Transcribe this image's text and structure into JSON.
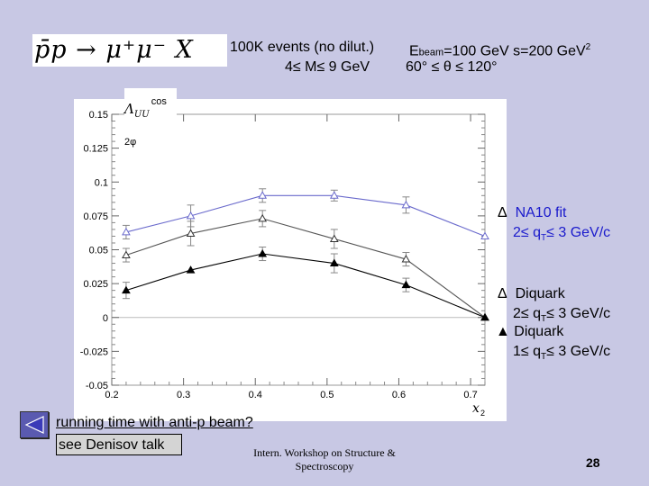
{
  "header": {
    "reaction": "p̄p → μ⁺μ⁻ X",
    "events": "100K events (no dilut.)",
    "mass_range": "4≤ M≤ 9 GeV",
    "beam_prefix": "E",
    "beam_sub": "beam",
    "beam_value": "=100 GeV  s=200 GeV",
    "beam_sup": "2",
    "theta_range": "60° ≤ θ ≤ 120°"
  },
  "y_axis_label": {
    "symbol": "Λ",
    "sub": "UU",
    "sup": "cos 2φ"
  },
  "legend": {
    "na10_marker": "Δ",
    "na10_label": "NA10 fit",
    "na10_range": "2≤ q",
    "na10_range_sub": "T",
    "na10_range_end": "≤ 3 GeV/c",
    "diquark_open_marker": "Δ",
    "diquark_open_label": "Diquark",
    "diquark_open_range": "2≤ q",
    "diquark_open_range_sub": "T",
    "diquark_open_range_end": "≤ 3 GeV/c",
    "diquark_filled_marker": "▲",
    "diquark_filled_label": "Diquark",
    "diquark_filled_range": "1≤ q",
    "diquark_filled_range_sub": "T",
    "diquark_filled_range_end": "≤ 3 GeV/c"
  },
  "footer": {
    "note": "running time with anti-p beam?",
    "link": "see Denisov talk",
    "workshop_line1": "Intern. Workshop on Structure &",
    "workshop_line2": "Spectroscopy",
    "page_number": "28"
  },
  "colors": {
    "na10": "#6a6acc",
    "diquark_open": "#333333",
    "diquark_filled": "#000000",
    "background": "#c8c8e4"
  },
  "chart_data": {
    "type": "line",
    "title": "",
    "xlabel": "x2",
    "ylabel": "Λ_UU^cos2φ",
    "xlim": [
      0.2,
      0.72
    ],
    "ylim": [
      -0.05,
      0.15
    ],
    "x_ticks": [
      0.2,
      0.3,
      0.4,
      0.5,
      0.6,
      0.7
    ],
    "x_tick_labels": [
      "0.2",
      "0.3",
      "0.4",
      "0.5",
      "0.6",
      "0.7"
    ],
    "y_ticks": [
      -0.05,
      -0.025,
      0,
      0.025,
      0.05,
      0.075,
      0.1,
      0.125,
      0.15
    ],
    "y_tick_labels": [
      "-0.05",
      "-0.025",
      "0",
      "0.025",
      "0.05",
      "0.075",
      "0.1",
      "0.125",
      "0.15"
    ],
    "x_label_display": "x",
    "x_label_sub": "2",
    "series": [
      {
        "name": "NA10 fit, 2≤qT≤3 GeV/c",
        "marker": "open-triangle",
        "x": [
          0.22,
          0.31,
          0.41,
          0.51,
          0.61,
          0.72
        ],
        "y": [
          0.063,
          0.075,
          0.09,
          0.09,
          0.083,
          0.06
        ],
        "err": [
          0.005,
          0.008,
          0.005,
          0.004,
          0.006,
          0.0
        ]
      },
      {
        "name": "Diquark, 2≤qT≤3 GeV/c",
        "marker": "open-triangle",
        "x": [
          0.22,
          0.31,
          0.41,
          0.51,
          0.61,
          0.72
        ],
        "y": [
          0.046,
          0.062,
          0.073,
          0.058,
          0.043,
          0.0
        ],
        "err": [
          0.005,
          0.009,
          0.006,
          0.007,
          0.005,
          0.0
        ]
      },
      {
        "name": "Diquark, 1≤qT≤3 GeV/c",
        "marker": "filled-triangle",
        "x": [
          0.22,
          0.31,
          0.41,
          0.51,
          0.61,
          0.72
        ],
        "y": [
          0.02,
          0.035,
          0.047,
          0.04,
          0.024,
          0.0
        ],
        "err": [
          0.006,
          0.0,
          0.005,
          0.007,
          0.005,
          0.0
        ]
      }
    ]
  }
}
